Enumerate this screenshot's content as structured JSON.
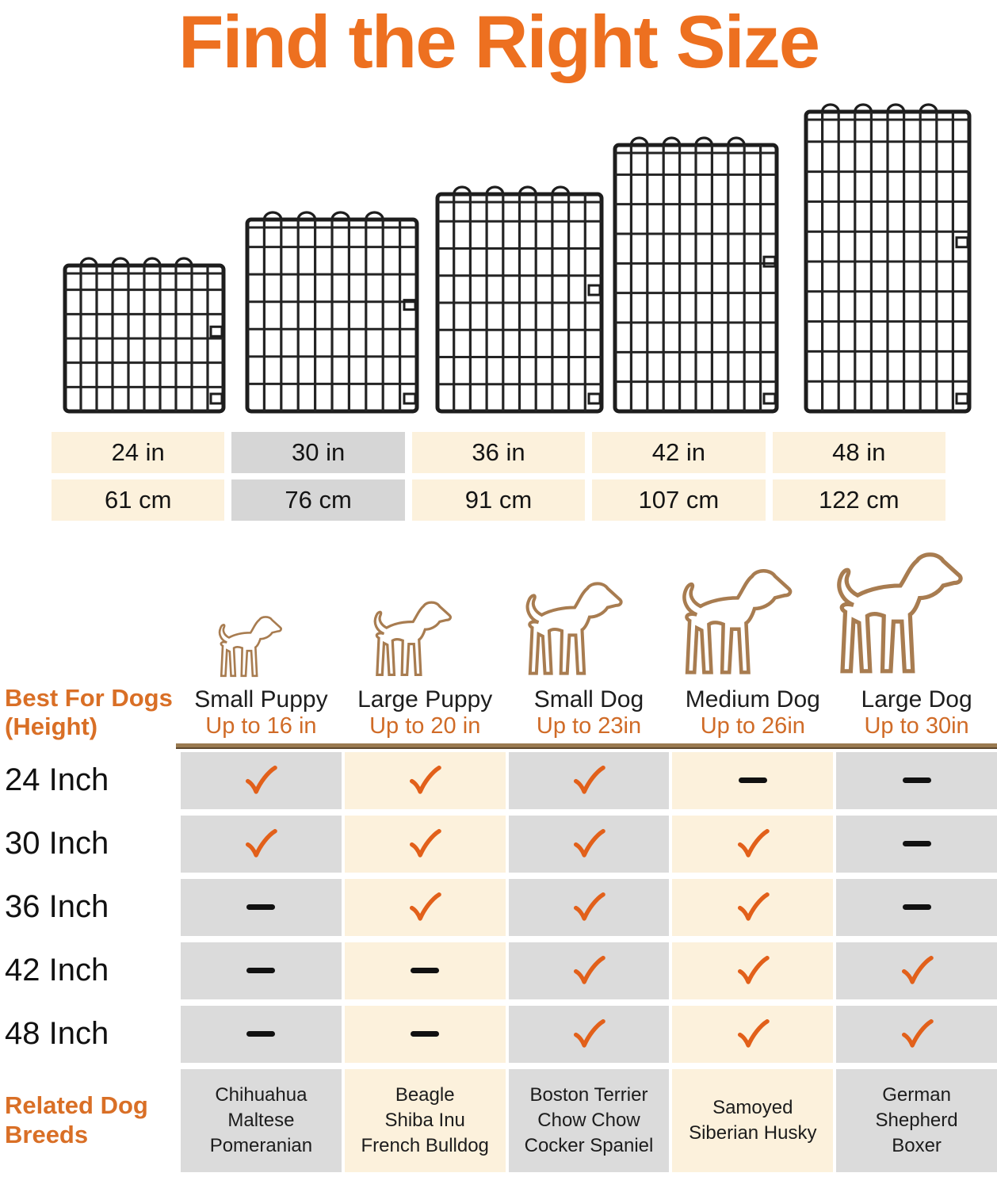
{
  "title": "Find the Right Size",
  "colors": {
    "title_orange": "#ED7020",
    "accent_orange": "#D96F26",
    "check_orange": "#E2601A",
    "divider_brown": "#8F7350",
    "dog_outline_brown": "#A87C50",
    "cell_gray": "#DBDBDB",
    "cell_cream": "#FCF1DC",
    "dash_black": "#111111"
  },
  "icons": {
    "crates": [
      "crate-panel-24in",
      "crate-panel-30in",
      "crate-panel-36in",
      "crate-panel-42in",
      "crate-panel-48in"
    ],
    "dogs": [
      "small-puppy-outline",
      "large-puppy-outline",
      "small-dog-outline",
      "medium-dog-outline",
      "large-dog-outline"
    ]
  },
  "size_table": {
    "columns": [
      {
        "inches": "24 in",
        "cm": "61 cm",
        "highlighted": false
      },
      {
        "inches": "30 in",
        "cm": "76 cm",
        "highlighted": true
      },
      {
        "inches": "36 in",
        "cm": "91 cm",
        "highlighted": false
      },
      {
        "inches": "42 in",
        "cm": "107 cm",
        "highlighted": false
      },
      {
        "inches": "48 in",
        "cm": "122 cm",
        "highlighted": false
      }
    ]
  },
  "matrix": {
    "row_header_line1": "Best For Dogs",
    "row_header_line2": "(Height)",
    "columns": [
      {
        "name": "Small Puppy",
        "height_limit": "Up to 16 in",
        "breeds": [
          "Chihuahua",
          "Maltese",
          "Pomeranian"
        ]
      },
      {
        "name": "Large Puppy",
        "height_limit": "Up to 20 in",
        "breeds": [
          "Beagle",
          "Shiba Inu",
          "French Bulldog"
        ]
      },
      {
        "name": "Small Dog",
        "height_limit": "Up to 23in",
        "breeds": [
          "Boston Terrier",
          "Chow Chow",
          "Cocker Spaniel"
        ]
      },
      {
        "name": "Medium Dog",
        "height_limit": "Up to 26in",
        "breeds": [
          "Samoyed",
          "Siberian Husky"
        ]
      },
      {
        "name": "Large Dog",
        "height_limit": "Up to 30in",
        "breeds": [
          "German Shepherd",
          "Boxer"
        ]
      }
    ],
    "rows": [
      {
        "label": "24 Inch",
        "marks": [
          "check",
          "check",
          "check",
          "dash",
          "dash"
        ]
      },
      {
        "label": "30 Inch",
        "marks": [
          "check",
          "check",
          "check",
          "check",
          "dash"
        ]
      },
      {
        "label": "36 Inch",
        "marks": [
          "dash",
          "check",
          "check",
          "check",
          "dash"
        ]
      },
      {
        "label": "42 Inch",
        "marks": [
          "dash",
          "dash",
          "check",
          "check",
          "check"
        ]
      },
      {
        "label": "48 Inch",
        "marks": [
          "dash",
          "dash",
          "check",
          "check",
          "check"
        ]
      }
    ],
    "breeds_label_line1": "Related Dog",
    "breeds_label_line2": "Breeds"
  },
  "chart_data": [
    {
      "type": "table",
      "title": "Crate panel widths",
      "columns": [
        "24 in",
        "30 in",
        "36 in",
        "42 in",
        "48 in"
      ],
      "rows": [
        [
          "61 cm",
          "76 cm",
          "91 cm",
          "107 cm",
          "122 cm"
        ]
      ],
      "highlighted_column": "30 in"
    },
    {
      "type": "table",
      "title": "Best For Dogs (Height)",
      "column_headers": [
        "Small Puppy (Up to 16 in)",
        "Large Puppy (Up to 20 in)",
        "Small Dog (Up to 23in)",
        "Medium Dog (Up to 26in)",
        "Large Dog (Up to 30in)"
      ],
      "row_headers": [
        "24 Inch",
        "30 Inch",
        "36 Inch",
        "42 Inch",
        "48 Inch",
        "Related Dog Breeds"
      ],
      "cells": [
        [
          "yes",
          "yes",
          "yes",
          "no",
          "no"
        ],
        [
          "yes",
          "yes",
          "yes",
          "yes",
          "no"
        ],
        [
          "no",
          "yes",
          "yes",
          "yes",
          "no"
        ],
        [
          "no",
          "no",
          "yes",
          "yes",
          "yes"
        ],
        [
          "no",
          "no",
          "yes",
          "yes",
          "yes"
        ],
        [
          "Chihuahua, Maltese, Pomeranian",
          "Beagle, Shiba Inu, French Bulldog",
          "Boston Terrier, Chow Chow, Cocker Spaniel",
          "Samoyed, Siberian Husky",
          "German Shepherd, Boxer"
        ]
      ]
    }
  ]
}
